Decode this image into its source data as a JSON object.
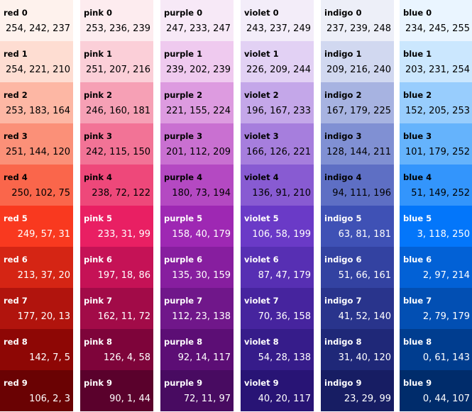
{
  "palette": [
    {
      "family": "red",
      "shades": [
        {
          "name": "red 0",
          "rgb": "254, 242, 237",
          "hex": "#fef2ed",
          "text_color": "#000000"
        },
        {
          "name": "red 1",
          "rgb": "254, 221, 210",
          "hex": "#feddd2",
          "text_color": "#000000"
        },
        {
          "name": "red 2",
          "rgb": "253, 183, 164",
          "hex": "#fdb7a4",
          "text_color": "#000000"
        },
        {
          "name": "red 3",
          "rgb": "251, 144, 120",
          "hex": "#fb9078",
          "text_color": "#000000"
        },
        {
          "name": "red 4",
          "rgb": "250, 102, 75",
          "hex": "#fa664b",
          "text_color": "#000000"
        },
        {
          "name": "red 5",
          "rgb": "249, 57, 31",
          "hex": "#f9391f",
          "text_color": "#ffffff"
        },
        {
          "name": "red 6",
          "rgb": "213, 37, 20",
          "hex": "#d52514",
          "text_color": "#ffffff"
        },
        {
          "name": "red 7",
          "rgb": "177, 20, 13",
          "hex": "#b1140d",
          "text_color": "#ffffff"
        },
        {
          "name": "red 8",
          "rgb": "142, 7, 5",
          "hex": "#8e0705",
          "text_color": "#ffffff"
        },
        {
          "name": "red 9",
          "rgb": "106, 2, 3",
          "hex": "#6a0203",
          "text_color": "#ffffff"
        }
      ]
    },
    {
      "family": "pink",
      "shades": [
        {
          "name": "pink 0",
          "rgb": "253, 236, 239",
          "hex": "#fdecef",
          "text_color": "#000000"
        },
        {
          "name": "pink 1",
          "rgb": "251, 207, 216",
          "hex": "#fbcfd8",
          "text_color": "#000000"
        },
        {
          "name": "pink 2",
          "rgb": "246, 160, 181",
          "hex": "#f6a0b5",
          "text_color": "#000000"
        },
        {
          "name": "pink 3",
          "rgb": "242, 115, 150",
          "hex": "#f27396",
          "text_color": "#000000"
        },
        {
          "name": "pink 4",
          "rgb": "238, 72, 122",
          "hex": "#ee487a",
          "text_color": "#000000"
        },
        {
          "name": "pink 5",
          "rgb": "233, 31, 99",
          "hex": "#e91f63",
          "text_color": "#ffffff"
        },
        {
          "name": "pink 6",
          "rgb": "197, 18, 86",
          "hex": "#c51256",
          "text_color": "#ffffff"
        },
        {
          "name": "pink 7",
          "rgb": "162, 11, 72",
          "hex": "#a20b48",
          "text_color": "#ffffff"
        },
        {
          "name": "pink 8",
          "rgb": "126, 4, 58",
          "hex": "#7e043a",
          "text_color": "#ffffff"
        },
        {
          "name": "pink 9",
          "rgb": "90, 1, 44",
          "hex": "#5a012c",
          "text_color": "#ffffff"
        }
      ]
    },
    {
      "family": "purple",
      "shades": [
        {
          "name": "purple 0",
          "rgb": "247, 233, 247",
          "hex": "#f7e9f7",
          "text_color": "#000000"
        },
        {
          "name": "purple 1",
          "rgb": "239, 202, 239",
          "hex": "#efcaef",
          "text_color": "#000000"
        },
        {
          "name": "purple 2",
          "rgb": "221, 155, 224",
          "hex": "#dd9be0",
          "text_color": "#000000"
        },
        {
          "name": "purple 3",
          "rgb": "201, 112, 209",
          "hex": "#c970d1",
          "text_color": "#000000"
        },
        {
          "name": "purple 4",
          "rgb": "180, 73, 194",
          "hex": "#b449c2",
          "text_color": "#000000"
        },
        {
          "name": "purple 5",
          "rgb": "158, 40, 179",
          "hex": "#9e28b3",
          "text_color": "#ffffff"
        },
        {
          "name": "purple 6",
          "rgb": "135, 30, 159",
          "hex": "#871e9f",
          "text_color": "#ffffff"
        },
        {
          "name": "purple 7",
          "rgb": "112, 23, 138",
          "hex": "#70178a",
          "text_color": "#ffffff"
        },
        {
          "name": "purple 8",
          "rgb": "92, 14, 117",
          "hex": "#5c0e75",
          "text_color": "#ffffff"
        },
        {
          "name": "purple 9",
          "rgb": "72, 11, 97",
          "hex": "#480b61",
          "text_color": "#ffffff"
        }
      ]
    },
    {
      "family": "violet",
      "shades": [
        {
          "name": "violet 0",
          "rgb": "243, 237, 249",
          "hex": "#f3edf9",
          "text_color": "#000000"
        },
        {
          "name": "violet 1",
          "rgb": "226, 209, 244",
          "hex": "#e2d1f4",
          "text_color": "#000000"
        },
        {
          "name": "violet 2",
          "rgb": "196, 167, 233",
          "hex": "#c4a7e9",
          "text_color": "#000000"
        },
        {
          "name": "violet 3",
          "rgb": "166, 126, 221",
          "hex": "#a67edd",
          "text_color": "#000000"
        },
        {
          "name": "violet 4",
          "rgb": "136, 91, 210",
          "hex": "#885bd2",
          "text_color": "#000000"
        },
        {
          "name": "violet 5",
          "rgb": "106, 58, 199",
          "hex": "#6a3ac7",
          "text_color": "#ffffff"
        },
        {
          "name": "violet 6",
          "rgb": "87, 47, 179",
          "hex": "#572fb3",
          "text_color": "#ffffff"
        },
        {
          "name": "violet 7",
          "rgb": "70, 36, 158",
          "hex": "#46249e",
          "text_color": "#ffffff"
        },
        {
          "name": "violet 8",
          "rgb": "54, 28, 138",
          "hex": "#361c8a",
          "text_color": "#ffffff"
        },
        {
          "name": "violet 9",
          "rgb": "40, 20, 117",
          "hex": "#281475",
          "text_color": "#ffffff"
        }
      ]
    },
    {
      "family": "indigo",
      "shades": [
        {
          "name": "indigo 0",
          "rgb": "237, 239, 248",
          "hex": "#edeff8",
          "text_color": "#000000"
        },
        {
          "name": "indigo 1",
          "rgb": "209, 216, 240",
          "hex": "#d1d8f0",
          "text_color": "#000000"
        },
        {
          "name": "indigo 2",
          "rgb": "167, 179, 225",
          "hex": "#a7b3e1",
          "text_color": "#000000"
        },
        {
          "name": "indigo 3",
          "rgb": "128, 144, 211",
          "hex": "#8090d3",
          "text_color": "#000000"
        },
        {
          "name": "indigo 4",
          "rgb": "94, 111, 196",
          "hex": "#5e6fc4",
          "text_color": "#000000"
        },
        {
          "name": "indigo 5",
          "rgb": "63, 81, 181",
          "hex": "#3f51b5",
          "text_color": "#ffffff"
        },
        {
          "name": "indigo 6",
          "rgb": "51, 66, 161",
          "hex": "#3342a1",
          "text_color": "#ffffff"
        },
        {
          "name": "indigo 7",
          "rgb": "41, 52, 140",
          "hex": "#29348c",
          "text_color": "#ffffff"
        },
        {
          "name": "indigo 8",
          "rgb": "31, 40, 120",
          "hex": "#1f2878",
          "text_color": "#ffffff"
        },
        {
          "name": "indigo 9",
          "rgb": "23, 29, 99",
          "hex": "#171d63",
          "text_color": "#ffffff"
        }
      ]
    },
    {
      "family": "blue",
      "shades": [
        {
          "name": "blue 0",
          "rgb": "234, 245, 255",
          "hex": "#eaf5ff",
          "text_color": "#000000"
        },
        {
          "name": "blue 1",
          "rgb": "203, 231, 254",
          "hex": "#cbe7fe",
          "text_color": "#000000"
        },
        {
          "name": "blue 2",
          "rgb": "152, 205, 253",
          "hex": "#98cdfd",
          "text_color": "#000000"
        },
        {
          "name": "blue 3",
          "rgb": "101, 179, 252",
          "hex": "#65b3fc",
          "text_color": "#000000"
        },
        {
          "name": "blue 4",
          "rgb": "51, 149, 252",
          "hex": "#3395fc",
          "text_color": "#000000"
        },
        {
          "name": "blue 5",
          "rgb": "3, 118, 250",
          "hex": "#0376fa",
          "text_color": "#ffffff"
        },
        {
          "name": "blue 6",
          "rgb": "2, 97, 214",
          "hex": "#0261d6",
          "text_color": "#ffffff"
        },
        {
          "name": "blue 7",
          "rgb": "2, 79, 179",
          "hex": "#024fb3",
          "text_color": "#ffffff"
        },
        {
          "name": "blue 8",
          "rgb": "0, 61, 143",
          "hex": "#003d8f",
          "text_color": "#ffffff"
        },
        {
          "name": "blue 9",
          "rgb": "0, 44, 107",
          "hex": "#002c6b",
          "text_color": "#ffffff"
        }
      ]
    }
  ]
}
